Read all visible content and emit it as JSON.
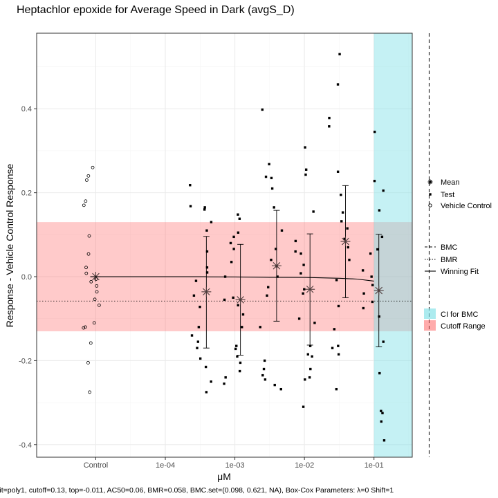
{
  "chart_data": {
    "type": "scatter",
    "title": "Heptachlor epoxide for Average Speed in Dark (avgS_D)",
    "xlabel": "μM",
    "ylabel": "Response - Vehicle Control Response",
    "caption": "Fit=poly1, cutoff=0.13, top=-0.011, AC50=0.06, BMR=0.058, BMC.set=(0.098, 0.621, NA), Box-Cox Parameters: λ=0 Shift=1",
    "x_scale": "log10",
    "xlim_log10": [
      -5.85,
      -0.45
    ],
    "ylim": [
      -0.43,
      0.58
    ],
    "x_ticks": [
      {
        "label": "Control",
        "log10": -5.0
      },
      {
        "label": "1e-04",
        "log10": -4.0
      },
      {
        "label": "1e-03",
        "log10": -3.0
      },
      {
        "label": "1e-02",
        "log10": -2.0
      },
      {
        "label": "1e-01",
        "log10": -1.0
      }
    ],
    "y_ticks": [
      {
        "label": "-0.4",
        "value": -0.4
      },
      {
        "label": "-0.2",
        "value": -0.2
      },
      {
        "label": "0.0",
        "value": 0.0
      },
      {
        "label": "0.2",
        "value": 0.2
      },
      {
        "label": "0.4",
        "value": 0.4
      }
    ],
    "grid": true,
    "legend_position": "right",
    "colors": {
      "cutoff_range": "#ff6666",
      "ci_bmc": "#7fe0e6",
      "points": "#000000",
      "mean_marker": "#4d3b3b",
      "fit_line": "#000000"
    },
    "cutoff_range": [
      -0.13,
      0.13
    ],
    "bmr_line": -0.058,
    "bmc_line_log10": -0.207,
    "ci_bmc_log10": [
      -1.0,
      -0.45
    ],
    "winning_fit": {
      "model": "poly1",
      "log10x": [
        -3.41,
        -3.0,
        -2.5,
        -2.0,
        -1.5,
        -1.24,
        -1.0
      ],
      "y": [
        -0.0004,
        -0.0007,
        -0.0014,
        -0.0018,
        -0.0037,
        -0.0058,
        -0.0105
      ]
    },
    "vehicle_control": {
      "log10x": [
        -5.0
      ],
      "y": [
        0.26,
        0.24,
        0.23,
        0.18,
        0.17,
        0.097,
        0.054,
        0.022,
        0.008,
        -0.006,
        -0.012,
        -0.022,
        -0.036,
        -0.054,
        -0.068,
        -0.11,
        -0.12,
        -0.122,
        -0.158,
        -0.205,
        -0.275
      ]
    },
    "test_points": [
      {
        "dose": "3.9e-04",
        "log10x": -3.41,
        "y": [
          0.218,
          0.168,
          0.165,
          0.16,
          0.13,
          0.11,
          0.06,
          0.022,
          0.01,
          -0.01,
          -0.045,
          -0.072,
          -0.12,
          -0.14,
          -0.155,
          -0.17,
          -0.195,
          -0.215,
          -0.25,
          -0.275
        ]
      },
      {
        "dose": "1.0e-03",
        "log10x": -2.92,
        "y": [
          0.148,
          0.138,
          0.105,
          0.095,
          0.08,
          0.066,
          0.035,
          0.0,
          -0.05,
          -0.055,
          -0.068,
          -0.09,
          -0.12,
          -0.165,
          -0.172,
          -0.19,
          -0.205,
          -0.225,
          -0.24,
          -0.255
        ]
      },
      {
        "dose": "4.0e-03",
        "log10x": -2.4,
        "y": [
          0.398,
          0.268,
          0.238,
          0.235,
          0.21,
          0.165,
          0.11,
          0.066,
          0.04,
          0.025,
          0.0,
          -0.025,
          -0.045,
          -0.12,
          -0.2,
          -0.22,
          -0.235,
          -0.245,
          -0.258,
          -0.268
        ]
      },
      {
        "dose": "1.2e-02",
        "log10x": -1.92,
        "y": [
          0.308,
          0.255,
          0.243,
          0.155,
          0.085,
          0.06,
          0.055,
          0.028,
          0.008,
          -0.03,
          -0.04,
          -0.1,
          -0.11,
          -0.165,
          -0.185,
          -0.19,
          -0.22,
          -0.24,
          -0.245,
          -0.31
        ]
      },
      {
        "dose": "4.0e-02",
        "log10x": -1.41,
        "y": [
          0.53,
          0.458,
          0.378,
          0.358,
          0.25,
          0.195,
          0.153,
          0.132,
          0.115,
          0.09,
          0.07,
          0.04,
          -0.008,
          -0.07,
          -0.125,
          -0.165,
          -0.17,
          -0.185,
          -0.268
        ]
      },
      {
        "dose": "1.2e-01",
        "log10x": -0.93,
        "y": [
          0.345,
          0.228,
          0.205,
          0.158,
          0.095,
          0.065,
          0.055,
          0.015,
          0.0,
          -0.02,
          -0.04,
          -0.06,
          -0.075,
          -0.095,
          -0.155,
          -0.23,
          -0.32,
          -0.325,
          -0.345,
          -0.39
        ]
      }
    ],
    "means": [
      {
        "log10x": -5.0,
        "mean": 0.0,
        "lower": null,
        "upper": null
      },
      {
        "log10x": -3.41,
        "mean": -0.036,
        "lower": -0.17,
        "upper": 0.096
      },
      {
        "log10x": -2.92,
        "mean": -0.055,
        "lower": -0.187,
        "upper": 0.077
      },
      {
        "log10x": -2.4,
        "mean": 0.026,
        "lower": -0.106,
        "upper": 0.158
      },
      {
        "log10x": -1.92,
        "mean": -0.03,
        "lower": -0.163,
        "upper": 0.102
      },
      {
        "log10x": -1.41,
        "mean": 0.084,
        "lower": -0.05,
        "upper": 0.217
      },
      {
        "log10x": -0.93,
        "mean": -0.033,
        "lower": -0.167,
        "upper": 0.101
      }
    ],
    "legend": {
      "points": [
        "Mean",
        "Test",
        "Vehicle Control"
      ],
      "lines": [
        "BMC",
        "BMR",
        "Winning Fit"
      ],
      "fills": [
        "CI for BMC",
        "Cutoff Range"
      ]
    }
  }
}
